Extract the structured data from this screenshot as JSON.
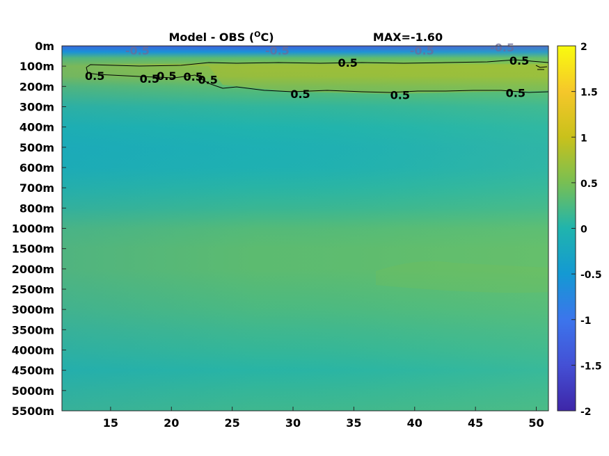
{
  "chart_data": {
    "type": "heatmap",
    "title": "Model - OBS (",
    "title_unit_sup": "O",
    "title_unit_tail": "C)",
    "max_label": "MAX=-1.60",
    "x_ticks": [
      15,
      20,
      25,
      30,
      35,
      40,
      45,
      50
    ],
    "xlim": [
      11,
      51
    ],
    "y_tick_labels": [
      "0m",
      "100m",
      "200m",
      "300m",
      "400m",
      "500m",
      "600m",
      "700m",
      "800m",
      "1000m",
      "1500m",
      "2000m",
      "2500m",
      "3000m",
      "3500m",
      "4000m",
      "4500m",
      "5000m",
      "5500m"
    ],
    "colorbar": {
      "ticks": [
        2,
        1.5,
        1,
        0.5,
        0,
        -0.5,
        -1,
        -1.5,
        -2
      ],
      "tick_labels": [
        "2",
        "1.5",
        "1",
        "0.5",
        "0",
        "-0.5",
        "-1",
        "-1.5",
        "-2"
      ],
      "range": [
        -2,
        2
      ],
      "colormap": "parula"
    },
    "level_profile": [
      {
        "depth_index": 0.0,
        "value": -1.3
      },
      {
        "depth_index": 0.3,
        "value": -0.6
      },
      {
        "depth_index": 0.6,
        "value": 0.35
      },
      {
        "depth_index": 1.0,
        "value": 0.65
      },
      {
        "depth_index": 1.5,
        "value": 0.6
      },
      {
        "depth_index": 2.0,
        "value": 0.35
      },
      {
        "depth_index": 3.0,
        "value": 0.1
      },
      {
        "depth_index": 4.0,
        "value": 0.0
      },
      {
        "depth_index": 5.0,
        "value": -0.08
      },
      {
        "depth_index": 6.0,
        "value": -0.05
      },
      {
        "depth_index": 7.0,
        "value": 0.05
      },
      {
        "depth_index": 8.0,
        "value": 0.15
      },
      {
        "depth_index": 9.0,
        "value": 0.3
      },
      {
        "depth_index": 10.0,
        "value": 0.35
      },
      {
        "depth_index": 11.0,
        "value": 0.35
      },
      {
        "depth_index": 12.0,
        "value": 0.3
      },
      {
        "depth_index": 13.0,
        "value": 0.25
      },
      {
        "depth_index": 14.0,
        "value": 0.18
      },
      {
        "depth_index": 15.0,
        "value": 0.12
      },
      {
        "depth_index": 16.0,
        "value": 0.05
      },
      {
        "depth_index": 17.0,
        "value": 0.12
      },
      {
        "depth_index": 18.0,
        "value": 0.18
      }
    ],
    "contour_level": 0.5,
    "contour_labels": [
      {
        "text": "0.5",
        "x": 13.7,
        "d": 1.5
      },
      {
        "text": "0.5",
        "x": 18.2,
        "d": 1.65
      },
      {
        "text": "0.5",
        "x": 19.6,
        "d": 1.5
      },
      {
        "text": "0.5",
        "x": 21.8,
        "d": 1.55
      },
      {
        "text": "0.5",
        "x": 23.0,
        "d": 1.7
      },
      {
        "text": "0.5",
        "x": 34.5,
        "d": 0.85
      },
      {
        "text": "0.5",
        "x": 48.6,
        "d": 0.75
      },
      {
        "text": "0.5",
        "x": 30.6,
        "d": 2.4
      },
      {
        "text": "0.5",
        "x": 38.8,
        "d": 2.45
      },
      {
        "text": "0.5",
        "x": 48.3,
        "d": 2.35
      },
      {
        "text": "-0.5",
        "x": 17.2,
        "d": 0.25
      },
      {
        "text": "-0.5",
        "x": 28.7,
        "d": 0.25
      },
      {
        "text": "-0.5",
        "x": 40.6,
        "d": 0.25
      },
      {
        "text": "-0.5",
        "x": 47.2,
        "d": 0.1
      }
    ]
  }
}
